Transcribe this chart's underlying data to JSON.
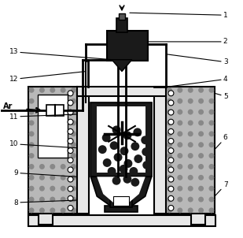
{
  "bg_color": "#ffffff",
  "figsize": [
    3.09,
    3.02
  ],
  "dpi": 100,
  "dot_pattern_color": "#b8b8b8",
  "dot_circle_color": "#888888",
  "dark_fill": "#1a1a1a",
  "med_dark": "#333333",
  "light_gray": "#e8e8e8",
  "mid_gray": "#c0c0c0"
}
